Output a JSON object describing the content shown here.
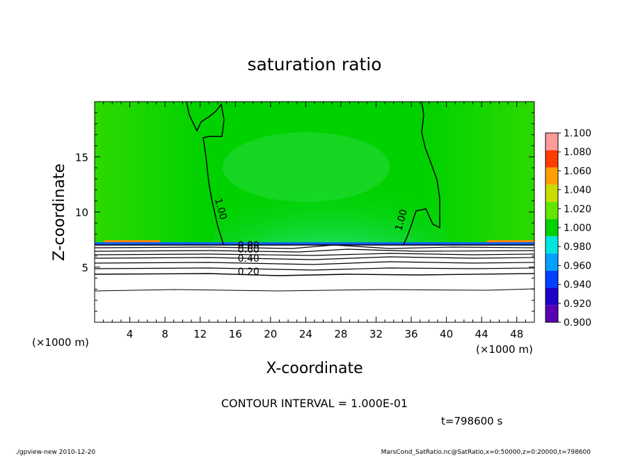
{
  "chart_data": {
    "type": "heatmap",
    "title": "saturation ratio",
    "xlabel": "X-coordinate",
    "ylabel": "Z-coordinate",
    "x_unit_left": "(×1000 m)",
    "x_unit_right": "(×1000 m)",
    "xlim": [
      0,
      50
    ],
    "ylim": [
      0,
      20
    ],
    "xticks": [
      4,
      8,
      12,
      16,
      20,
      24,
      28,
      32,
      36,
      40,
      44,
      48
    ],
    "yticks": [
      5,
      10,
      15
    ],
    "colorbar": {
      "levels": [
        "0.900",
        "0.920",
        "0.940",
        "0.960",
        "0.980",
        "1.000",
        "1.020",
        "1.040",
        "1.060",
        "1.080",
        "1.100"
      ],
      "colors": [
        "#5a00b4",
        "#1e00c8",
        "#0040ff",
        "#00a0ff",
        "#00e6dc",
        "#00d200",
        "#64e600",
        "#c8dc00",
        "#ffa000",
        "#ff3c00",
        "#ff9a9a"
      ]
    },
    "contour_labels": [
      {
        "text": "1.00",
        "x": 14.0,
        "z": 10.2,
        "angle": 75
      },
      {
        "text": "1.00",
        "x": 35.2,
        "z": 9.2,
        "angle": -75
      },
      {
        "text": "0.80",
        "x": 17.5,
        "z": 6.7,
        "angle": 0
      },
      {
        "text": "0.60",
        "x": 17.5,
        "z": 6.3,
        "angle": 0
      },
      {
        "text": "0.40",
        "x": 17.5,
        "z": 5.5,
        "angle": 0
      },
      {
        "text": "0.20",
        "x": 17.5,
        "z": 4.3,
        "angle": 0
      }
    ],
    "contour_interval_text": "CONTOUR INTERVAL = 1.000E-01",
    "time_text": "t=798600  s",
    "footer_left": "./gpview-new   2010-12-20",
    "footer_right": "MarsCond_SatRatio.nc@SatRatio,x=0:50000,z=0:20000,t=798600"
  }
}
